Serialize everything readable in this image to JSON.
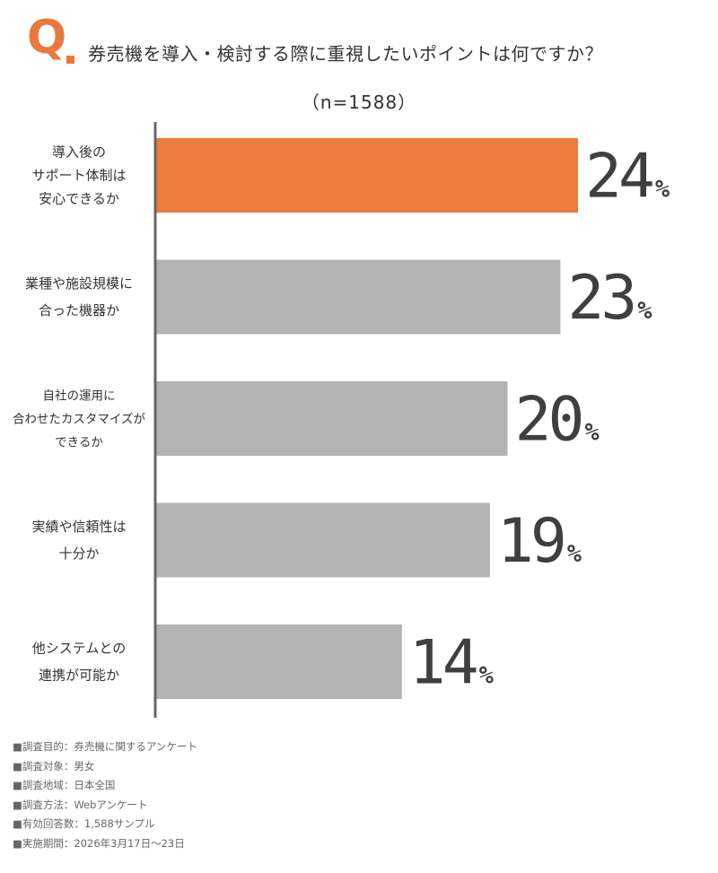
{
  "header": {
    "q_label": "Q",
    "question": "券売機を導入・検討する際に重視したいポイントは何ですか？",
    "sample": "（n=1588）"
  },
  "chart_data": {
    "type": "bar",
    "orientation": "horizontal",
    "categories": [
      [
        "導入後の",
        "サポート体制は",
        "安心できるか"
      ],
      [
        "業種や施設規模に",
        "合った機器か"
      ],
      [
        "自社の運用に",
        "合わせたカスタマイズが",
        "できるか"
      ],
      [
        "実績や信頼性は",
        "十分か"
      ],
      [
        "他システムとの",
        "連携が可能か"
      ]
    ],
    "values": [
      24,
      23,
      20,
      19,
      14
    ],
    "unit": "%",
    "colors": [
      "#ec7b3e",
      "#b3b3b3",
      "#b3b3b3",
      "#b3b3b3",
      "#b3b3b3"
    ],
    "xlim": [
      0,
      30
    ],
    "grid": false,
    "legend": "none"
  },
  "footnotes": [
    "■調査目的：券売機に関するアンケート",
    "■調査対象：男女",
    "■調査地域：日本全国",
    "■調査方法：Webアンケート",
    "■有効回答数：1,588サンプル",
    "■実施期間：2026年3月17日〜23日"
  ]
}
